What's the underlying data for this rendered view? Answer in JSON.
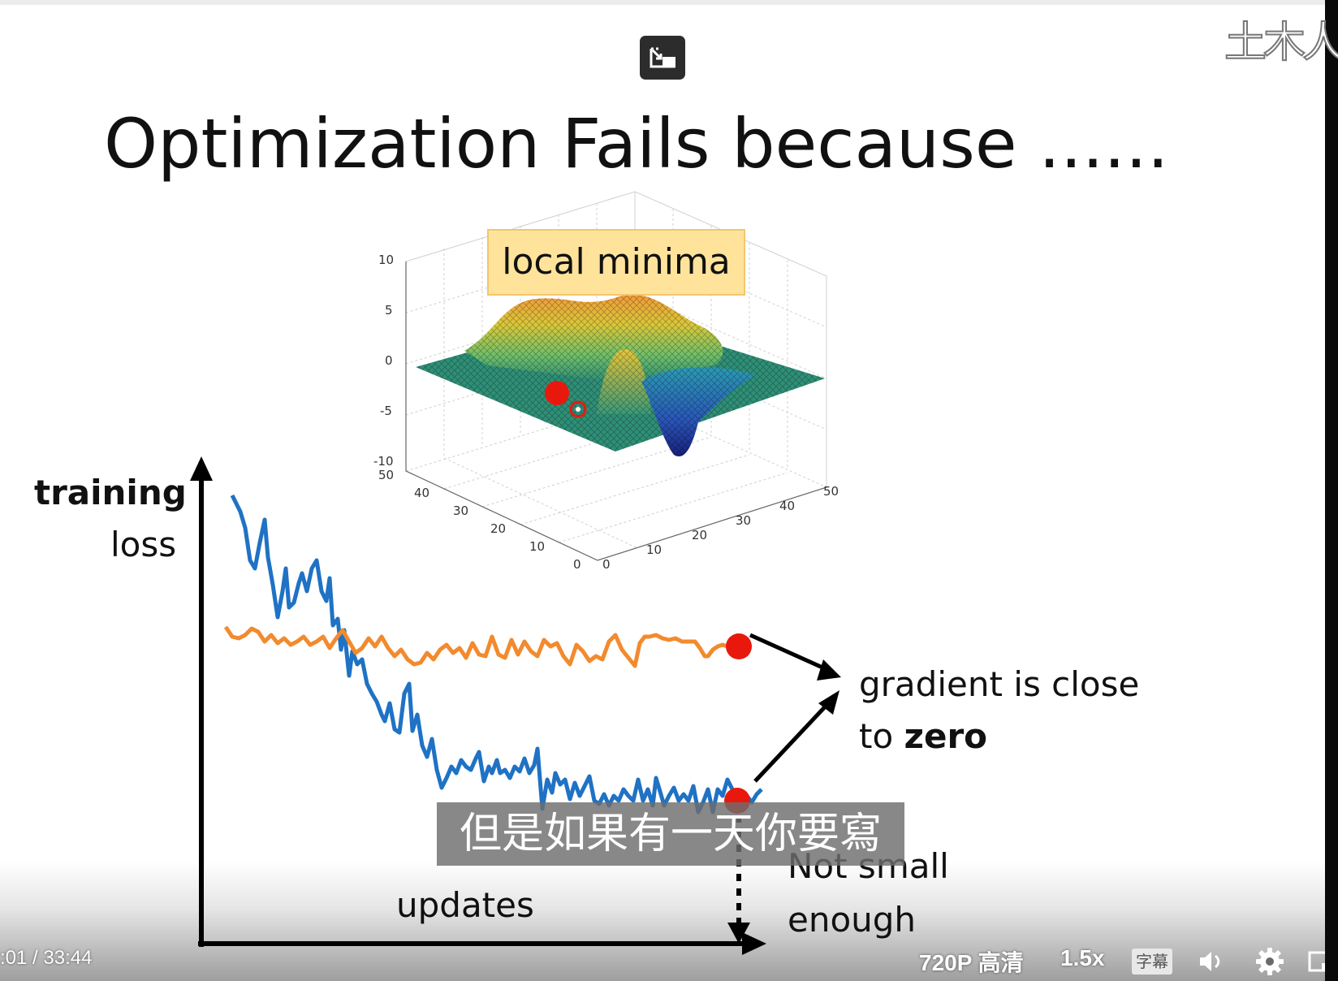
{
  "watermark": {
    "text": "土木人"
  },
  "slide": {
    "title": "Optimization Fails because ......",
    "callout": "local minima",
    "y_axis_label_line1": "training",
    "y_axis_label_line2": "loss",
    "x_axis_label": "updates",
    "annotation_gradient_line1": "gradient is close",
    "annotation_gradient_line2_prefix": "to ",
    "annotation_gradient_line2_bold": "zero",
    "annotation_notsmall_line1": "Not small",
    "annotation_notsmall_line2": "enough",
    "surface_plot": {
      "z_ticks": [
        "10",
        "5",
        "0",
        "-5",
        "-10"
      ],
      "left_axis_ticks": [
        "50",
        "40",
        "30",
        "20",
        "10",
        "0"
      ],
      "right_axis_ticks": [
        "0",
        "10",
        "20",
        "30",
        "40",
        "50"
      ]
    },
    "colors": {
      "orange_curve": "#f28a2e",
      "blue_curve": "#1f72c4",
      "marker": "#e8190c",
      "callout_fill": "#ffe39b"
    }
  },
  "subtitle": {
    "text": "但是如果有一天你要寫"
  },
  "player": {
    "time_current": ":01",
    "time_separator": "/",
    "time_total": "33:44",
    "quality": "720P 高清",
    "speed": "1.5x",
    "captions_label": "字幕",
    "icons": [
      "pip-icon",
      "volume-icon",
      "settings-gear-icon",
      "fullscreen-icon"
    ]
  }
}
